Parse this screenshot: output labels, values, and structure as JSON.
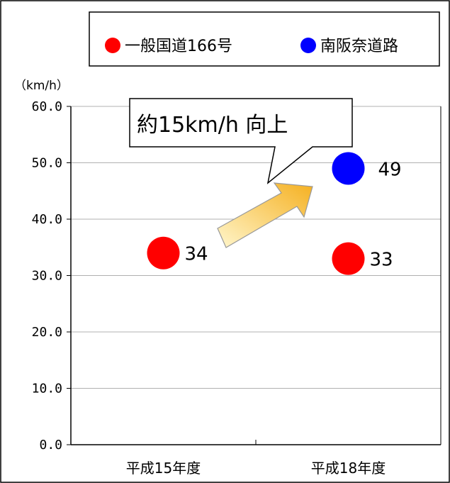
{
  "chart_data": {
    "type": "scatter",
    "categories": [
      "平成15年度",
      "平成18年度"
    ],
    "ylim": [
      0,
      60
    ],
    "yticks": [
      "0.0",
      "10.0",
      "20.0",
      "30.0",
      "40.0",
      "50.0",
      "60.0"
    ],
    "unit_label": "（km/h）",
    "legend_position": "top",
    "series": [
      {
        "name": "一般国道166号",
        "color": "#ff0000",
        "points": [
          {
            "category": "平成15年度",
            "value": 34,
            "label": "34"
          },
          {
            "category": "平成18年度",
            "value": 33,
            "label": "33"
          }
        ]
      },
      {
        "name": "南阪奈道路",
        "color": "#0000ff",
        "points": [
          {
            "category": "平成18年度",
            "value": 49,
            "label": "49"
          }
        ]
      }
    ],
    "annotation": {
      "text": "約15km/h 向上",
      "arrow_color": "#f5c542"
    },
    "grid": true
  }
}
